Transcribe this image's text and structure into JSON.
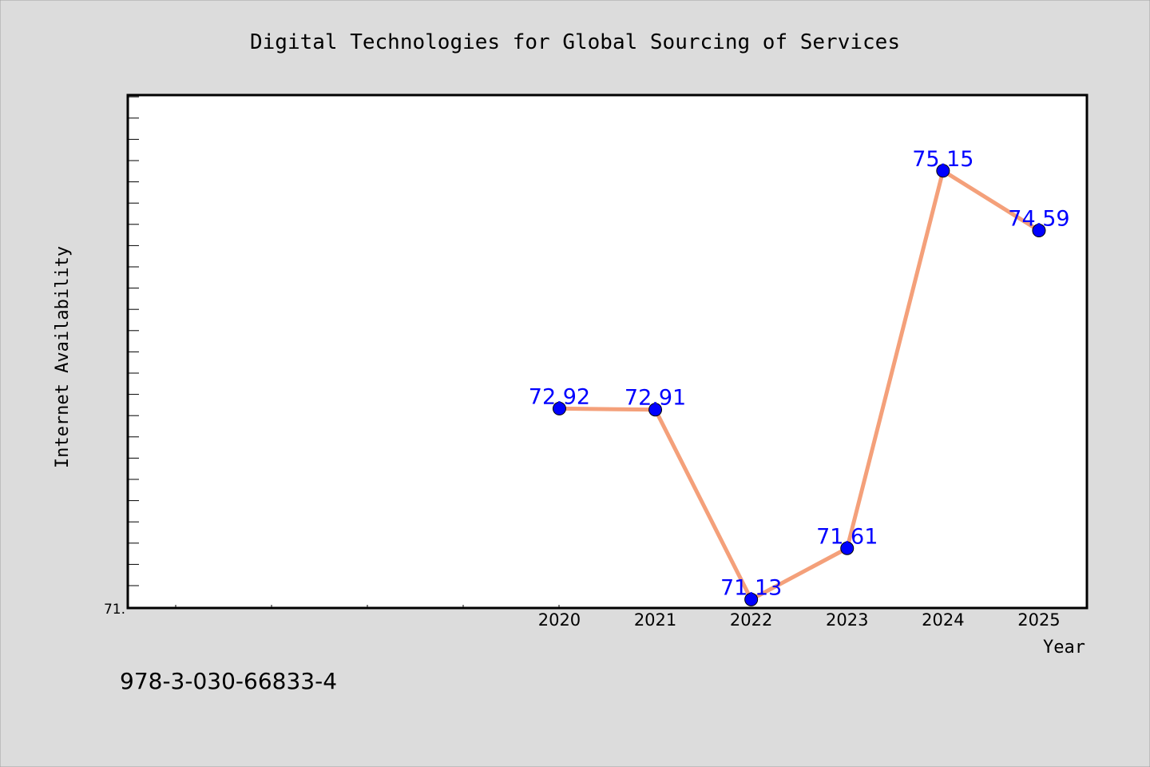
{
  "chart_data": {
    "type": "line",
    "title": "Digital Technologies for Global Sourcing of Services",
    "xlabel": "Year",
    "ylabel": "Internet Availability",
    "x": [
      2020,
      2021,
      2022,
      2023,
      2024,
      2025
    ],
    "x_tick_labels": [
      "2020",
      "2021",
      "2022",
      "2023",
      "2024",
      "2025"
    ],
    "series": [
      {
        "values": [
          72.92,
          72.91,
          71.13,
          71.61,
          75.15,
          74.59
        ],
        "data_labels": [
          "72.92",
          "72.91",
          "71.13",
          "71.61",
          "75.15",
          "74.59"
        ]
      }
    ],
    "y_tick_labels": [
      "71."
    ],
    "ylim": [
      71.05,
      75.86
    ],
    "xlim": [
      2015.5,
      2025.5
    ],
    "grid": false,
    "legend": "none",
    "line_color": "#f4a07a",
    "marker_color": "#0000ff",
    "label_color": "#0000ff",
    "footer_text": "978-3-030-66833-4"
  }
}
